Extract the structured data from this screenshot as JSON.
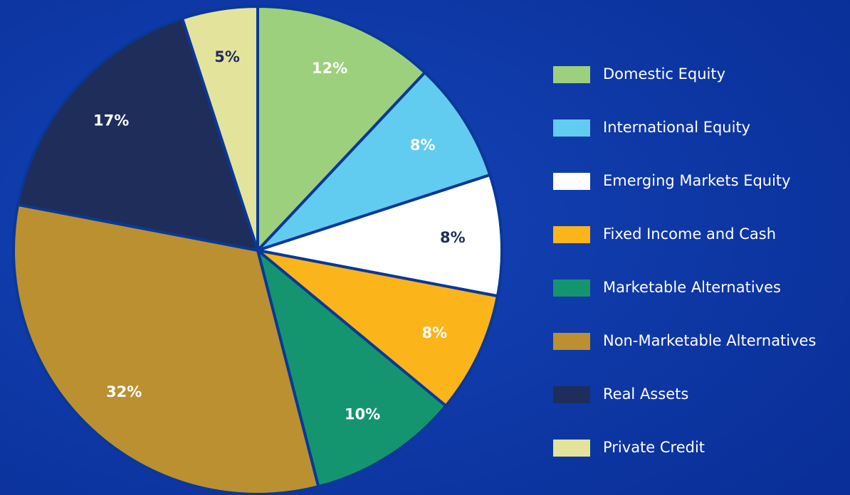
{
  "chart_data": {
    "type": "pie",
    "categories": [
      "Domestic Equity",
      "International Equity",
      "Emerging Markets Equity",
      "Fixed Income and Cash",
      "Marketable Alternatives",
      "Non-Marketable Alternatives",
      "Real Assets",
      "Private Credit"
    ],
    "values": [
      12,
      8,
      8,
      8,
      10,
      32,
      17,
      5
    ],
    "value_labels": [
      "12%",
      "8%",
      "8%",
      "8%",
      "10%",
      "32%",
      "17%",
      "5%"
    ],
    "colors": [
      "#9dd07c",
      "#62cbf0",
      "#ffffff",
      "#fbb41a",
      "#14956f",
      "#bb9030",
      "#1f2d5a",
      "#e4e39b"
    ],
    "label_colors": [
      "#ffffff",
      "#ffffff",
      "#1f2d5a",
      "#ffffff",
      "#ffffff",
      "#ffffff",
      "#ffffff",
      "#1f2d5a"
    ],
    "legend": "right"
  }
}
